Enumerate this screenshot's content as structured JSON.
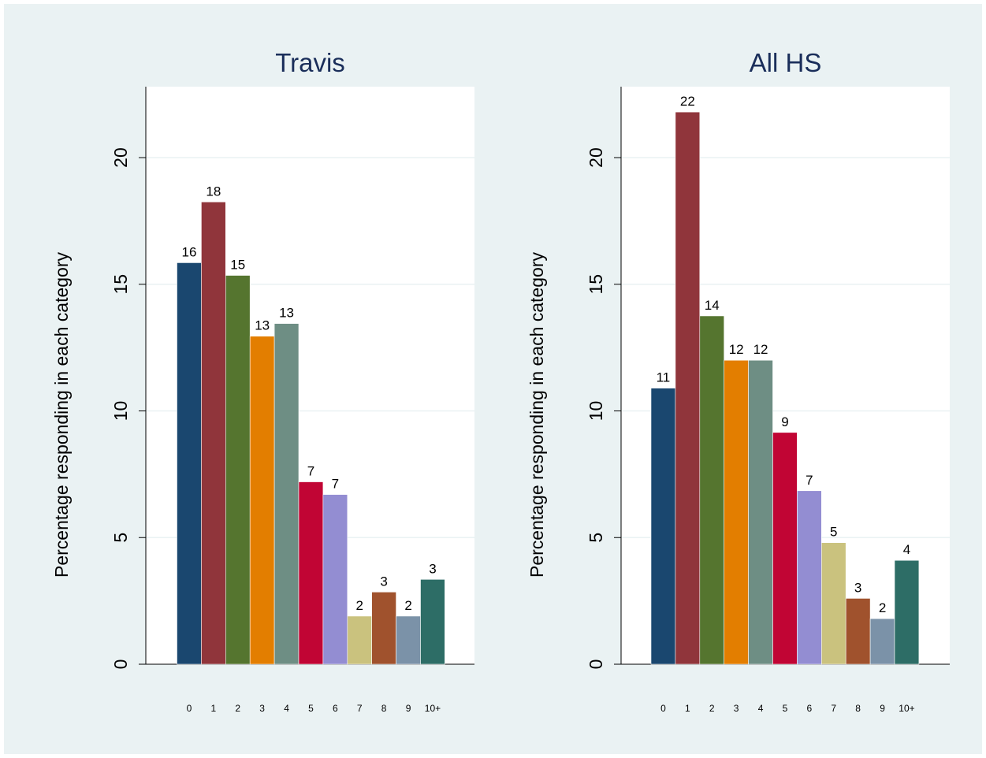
{
  "colors": {
    "background": "#eaf2f3",
    "plot_background": "#ffffff",
    "gridline": "#eaf2f3",
    "title": "#1a2e5a",
    "bars": [
      "#1a476f",
      "#90353b",
      "#55752f",
      "#e37e00",
      "#6e8e84",
      "#c10534",
      "#938dd2",
      "#cac27e",
      "#a0522d",
      "#7b92a8",
      "#2d6d66"
    ]
  },
  "chart_data": [
    {
      "type": "bar",
      "title": "Travis",
      "ylabel": "Percentage responding in each category",
      "xlabel": "",
      "categories": [
        "0",
        "1",
        "2",
        "3",
        "4",
        "5",
        "6",
        "7",
        "8",
        "9",
        "10+"
      ],
      "values": [
        15.85,
        18.25,
        15.35,
        12.95,
        13.45,
        7.2,
        6.7,
        1.9,
        2.85,
        1.9,
        3.35
      ],
      "data_labels": [
        "16",
        "18",
        "15",
        "13",
        "13",
        "7",
        "7",
        "2",
        "3",
        "2",
        "3"
      ],
      "yticks": [
        "0",
        "5",
        "10",
        "15",
        "20"
      ],
      "ylim": [
        0,
        22.8
      ],
      "grid": true,
      "legend": "none"
    },
    {
      "type": "bar",
      "title": "All HS",
      "ylabel": "Percentage responding in each category",
      "xlabel": "",
      "categories": [
        "0",
        "1",
        "2",
        "3",
        "4",
        "5",
        "6",
        "7",
        "8",
        "9",
        "10+"
      ],
      "values": [
        10.9,
        21.8,
        13.75,
        12.0,
        12.0,
        9.15,
        6.85,
        4.8,
        2.6,
        1.8,
        4.1
      ],
      "data_labels": [
        "11",
        "22",
        "14",
        "12",
        "12",
        "9",
        "7",
        "5",
        "3",
        "2",
        "4"
      ],
      "yticks": [
        "0",
        "5",
        "10",
        "15",
        "20"
      ],
      "ylim": [
        0,
        22.8
      ],
      "grid": true,
      "legend": "none"
    }
  ]
}
